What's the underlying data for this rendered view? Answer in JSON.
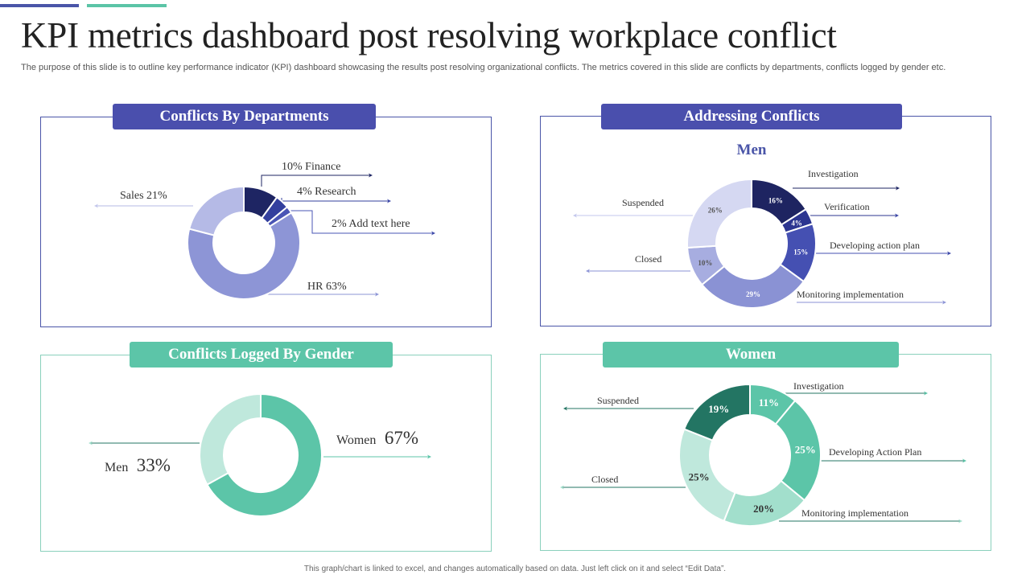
{
  "title": "KPI metrics dashboard post resolving workplace conflict",
  "subtitle": "The purpose of this slide is to outline key performance indicator (KPI) dashboard showcasing the results post resolving organizational conflicts. The metrics covered in this slide are conflicts by departments, conflicts logged by gender etc.",
  "footer": "This graph/chart is linked to excel, and changes automatically based on data. Just left click on it and select “Edit Data”.",
  "panels": {
    "departments": "Conflicts By Departments",
    "addressing": "Addressing Conflicts",
    "gender": "Conflicts Logged By Gender",
    "women": "Women"
  },
  "colors": {
    "blue_header": "#4a4fad",
    "green_header": "#5cc5a8",
    "blue_border": "#4a55a8",
    "green_border": "#8ad0bc"
  },
  "chart_data": [
    {
      "id": "departments",
      "type": "pie",
      "title": "Conflicts By Departments",
      "slices": [
        {
          "name": "Finance",
          "value": 10,
          "label": "10% Finance",
          "color": "#1e2563"
        },
        {
          "name": "Research",
          "value": 4,
          "label": "4% Research",
          "color": "#333f9e"
        },
        {
          "name": "Add text here",
          "value": 2,
          "label": "2% Add text here",
          "color": "#4a55b5"
        },
        {
          "name": "HR",
          "value": 63,
          "label": "HR 63%",
          "color": "#8d95d6"
        },
        {
          "name": "Sales",
          "value": 21,
          "label": "Sales 21%",
          "color": "#b5bae6"
        }
      ]
    },
    {
      "id": "men",
      "type": "pie",
      "title": "Addressing Conflicts",
      "center_title": "Men",
      "slices": [
        {
          "name": "Investigation",
          "value": 16,
          "label": "16%",
          "color": "#1e2461"
        },
        {
          "name": "Verification",
          "value": 4,
          "label": "4%",
          "color": "#2c3590"
        },
        {
          "name": "Developing action plan",
          "value": 15,
          "label": "15%",
          "color": "#4550b2"
        },
        {
          "name": "Monitoring implementation",
          "value": 29,
          "label": "29%",
          "color": "#8a92d4"
        },
        {
          "name": "Closed",
          "value": 10,
          "label": "10%",
          "color": "#a7ade0"
        },
        {
          "name": "Suspended",
          "value": 26,
          "label": "26%",
          "color": "#d5d8f2"
        }
      ]
    },
    {
      "id": "gender",
      "type": "pie",
      "title": "Conflicts Logged By Gender",
      "slices": [
        {
          "name": "Women",
          "value": 67,
          "label": "67%",
          "color": "#5cc5a8"
        },
        {
          "name": "Men",
          "value": 33,
          "label": "33%",
          "color": "#bfe8dc"
        }
      ]
    },
    {
      "id": "women",
      "type": "pie",
      "title": "Women",
      "slices": [
        {
          "name": "Investigation",
          "value": 11,
          "label": "11%",
          "color": "#5cc5a8"
        },
        {
          "name": "Developing Action Plan",
          "value": 25,
          "label": "25%",
          "color": "#5cc5a8"
        },
        {
          "name": "Monitoring implementation",
          "value": 20,
          "label": "20%",
          "color": "#a2dfcc"
        },
        {
          "name": "Closed",
          "value": 25,
          "label": "25%",
          "color": "#bfe8dc"
        },
        {
          "name": "Suspended",
          "value": 19,
          "label": "19%",
          "color": "#237563"
        }
      ]
    }
  ]
}
